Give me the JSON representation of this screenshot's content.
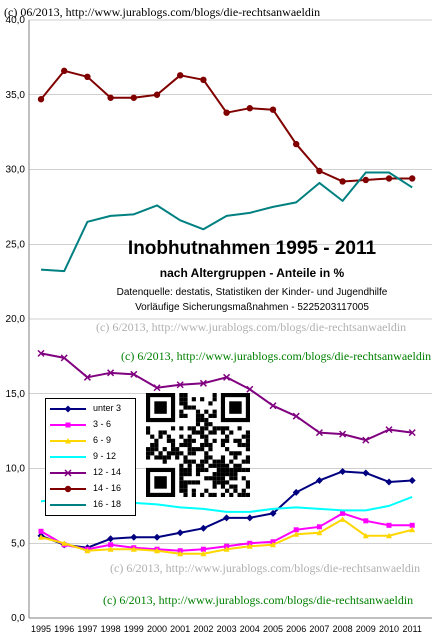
{
  "watermarks": {
    "top": "(c) 06/2013, http://www.jurablogs.com/blogs/die-rechtsanwaeldin",
    "mid1": "(c) 6/2013, http://www.jurablogs.com/blogs/die-rechtsanwaeldin",
    "mid2": "(c) 6/2013, http://www.jurablogs.com/blogs/die-rechtsanwaeldin",
    "low1": "(c) 6/2013, http://www.jurablogs.com/blogs/die-rechtsanwaeldin",
    "low2": "(c) 6/2013, http://www.jurablogs.com/blogs/die-rechtsanwaeldin"
  },
  "colors": {
    "watermark_black": "#000000",
    "watermark_green": "#008000",
    "watermark_gray": "#b0b0b0",
    "gridline": "#a0a0a0"
  },
  "chart_data": {
    "type": "line",
    "title": "Inobhutnahmen 1995 - 2011",
    "subtitle": "nach Altergruppen - Anteile in %",
    "source_line1": "Datenquelle: destatis, Statistiken der Kinder- und Jugendhilfe",
    "source_line2": "Vorläufige Sicherungsmaßnahmen - 5225203117005",
    "x": [
      "1995",
      "1996",
      "1997",
      "1998",
      "1999",
      "2000",
      "2001",
      "2002",
      "2003",
      "2004",
      "2005",
      "2006",
      "2007",
      "2008",
      "2009",
      "2010",
      "2011"
    ],
    "ylim": [
      0,
      40
    ],
    "yticks": [
      "0,0",
      "5,0",
      "10,0",
      "15,0",
      "20,0",
      "25,0",
      "30,0",
      "35,0",
      "40,0"
    ],
    "grid": "horizontal",
    "legend_position": "left-middle",
    "series": [
      {
        "name": "unter 3",
        "color": "#000080",
        "marker": "diamond",
        "values": [
          5.5,
          4.9,
          4.7,
          5.3,
          5.4,
          5.4,
          5.7,
          6.0,
          6.7,
          6.7,
          7.0,
          8.4,
          9.2,
          9.8,
          9.7,
          9.1,
          9.2
        ]
      },
      {
        "name": "3 - 6",
        "color": "#ff00ff",
        "marker": "square",
        "values": [
          5.8,
          4.9,
          4.6,
          4.9,
          4.7,
          4.6,
          4.5,
          4.6,
          4.8,
          5.0,
          5.1,
          5.9,
          6.1,
          7.0,
          6.5,
          6.2,
          6.2
        ]
      },
      {
        "name": "6 - 9",
        "color": "#ffd700",
        "marker": "triangle",
        "values": [
          5.4,
          5.0,
          4.5,
          4.6,
          4.6,
          4.5,
          4.3,
          4.3,
          4.6,
          4.8,
          4.9,
          5.6,
          5.7,
          6.6,
          5.5,
          5.5,
          5.9
        ]
      },
      {
        "name": "9 - 12",
        "color": "#00ffff",
        "marker": "none",
        "values": [
          7.8,
          8.0,
          7.6,
          7.5,
          7.7,
          7.6,
          7.4,
          7.3,
          7.1,
          7.1,
          7.3,
          7.4,
          7.3,
          7.2,
          7.2,
          7.5,
          8.1
        ]
      },
      {
        "name": "12 - 14",
        "color": "#800080",
        "marker": "x",
        "values": [
          17.7,
          17.4,
          16.1,
          16.4,
          16.3,
          15.4,
          15.6,
          15.7,
          16.1,
          15.3,
          14.2,
          13.5,
          12.4,
          12.3,
          11.9,
          12.6,
          12.4
        ]
      },
      {
        "name": "14 - 16",
        "color": "#800000",
        "marker": "dot",
        "values": [
          34.7,
          36.6,
          36.2,
          34.8,
          34.8,
          35.0,
          36.3,
          36.0,
          33.8,
          34.1,
          34.0,
          31.7,
          29.9,
          29.2,
          29.3,
          29.4,
          29.4
        ]
      },
      {
        "name": "16 - 18",
        "color": "#008080",
        "marker": "none",
        "values": [
          23.3,
          23.2,
          26.5,
          26.9,
          27.0,
          27.6,
          26.6,
          26.0,
          26.9,
          27.1,
          27.5,
          27.8,
          29.1,
          27.9,
          29.8,
          29.8,
          28.8
        ]
      }
    ]
  }
}
